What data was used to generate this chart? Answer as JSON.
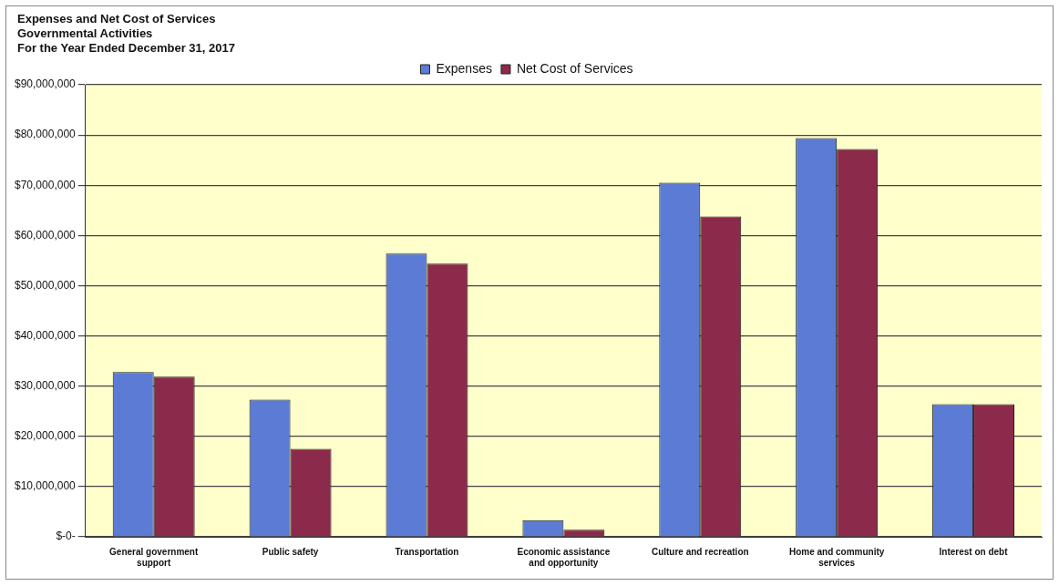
{
  "chart_data": {
    "type": "bar",
    "title": "Expenses and Net Cost of Services",
    "subtitle": "Governmental Activities\nFor the Year Ended December 31, 2017",
    "categories": [
      "General government support",
      "Public safety",
      "Transportation",
      "Economic assistance and opportunity",
      "Culture and recreation",
      "Home and community services",
      "Interest on debt"
    ],
    "series": [
      {
        "name": "Expenses",
        "color": "#5b7bd5",
        "values": [
          32800000,
          27300000,
          56400000,
          3300000,
          70500000,
          79400000,
          26400000
        ]
      },
      {
        "name": "Net Cost of Services",
        "color": "#8b2a4a",
        "values": [
          31900000,
          17500000,
          54400000,
          1400000,
          63800000,
          77200000,
          26400000
        ]
      }
    ],
    "ylim": [
      0,
      90000000
    ],
    "yticks": [
      {
        "value": 0,
        "label": "$-0-"
      },
      {
        "value": 10000000,
        "label": "$10,000,000"
      },
      {
        "value": 20000000,
        "label": "$20,000,000"
      },
      {
        "value": 30000000,
        "label": "$30,000,000"
      },
      {
        "value": 40000000,
        "label": "$40,000,000"
      },
      {
        "value": 50000000,
        "label": "$50,000,000"
      },
      {
        "value": 60000000,
        "label": "$60,000,000"
      },
      {
        "value": 70000000,
        "label": "$70,000,000"
      },
      {
        "value": 80000000,
        "label": "$80,000,000"
      },
      {
        "value": 90000000,
        "label": "$90,000,000"
      }
    ],
    "grid": "y",
    "legend": "top"
  }
}
